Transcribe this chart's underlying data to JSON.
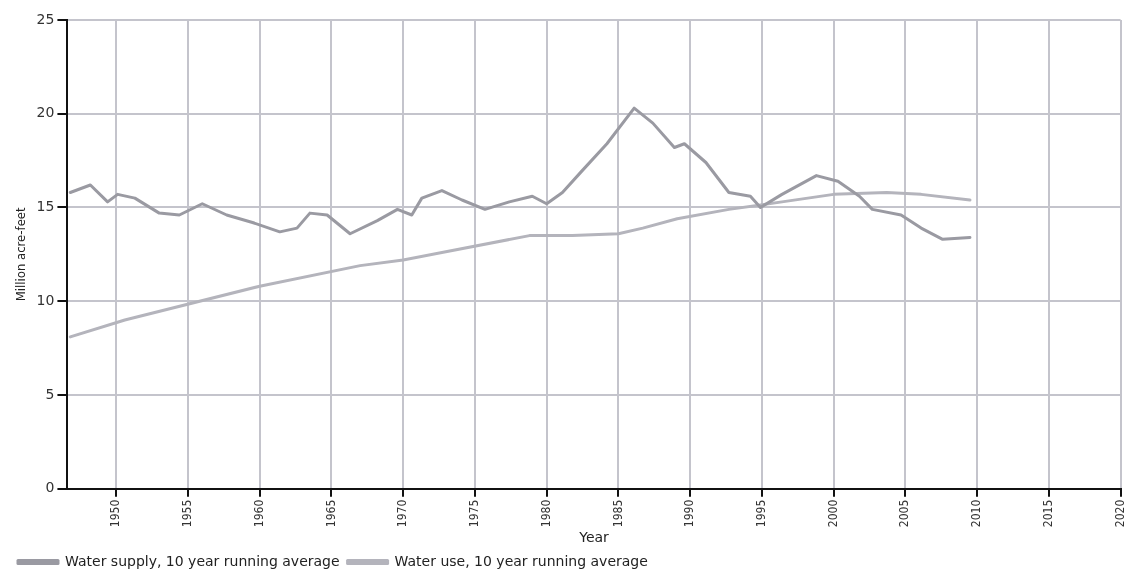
{
  "chart_data": {
    "type": "line",
    "xlabel": "Year",
    "ylabel": "Million acre-feet",
    "xlim": [
      1946.6,
      2020
    ],
    "xticks": [
      1950,
      1955,
      1960,
      1965,
      1970,
      1975,
      1980,
      1985,
      1990,
      1995,
      2000,
      2005,
      2010,
      2015,
      2020
    ],
    "ylim": [
      0,
      25
    ],
    "yticks": [
      0,
      5,
      10,
      15,
      20,
      25
    ],
    "grid": true,
    "legend": "bottom left",
    "marker": "none",
    "line_style": "solid",
    "series": [
      {
        "name": "Water supply, 10 year running average",
        "color": "#9a9aa2",
        "x": [
          1946.8,
          1948.2,
          1949.4,
          1950.1,
          1951.3,
          1953,
          1954.4,
          1956,
          1957.7,
          1959.5,
          1961.4,
          1962.6,
          1963.5,
          1964.7,
          1966.3,
          1968.2,
          1969.6,
          1970.6,
          1971.3,
          1972.7,
          1974.1,
          1975.7,
          1977.4,
          1979,
          1980,
          1981.1,
          1982.4,
          1984.2,
          1986.1,
          1987.4,
          1988.9,
          1989.6,
          1991.1,
          1992.7,
          1994.2,
          1994.9,
          1996.4,
          1998.8,
          2000.3,
          2001.8,
          2002.7,
          2004.7,
          2006.1,
          2007.6,
          2009.5
        ],
        "values": [
          15.8,
          16.2,
          15.3,
          15.7,
          15.5,
          14.7,
          14.6,
          15.2,
          14.6,
          14.2,
          13.7,
          13.9,
          14.7,
          14.6,
          13.6,
          14.3,
          14.9,
          14.6,
          15.5,
          15.9,
          15.4,
          14.9,
          15.3,
          15.6,
          15.2,
          15.8,
          16.9,
          18.4,
          20.3,
          19.5,
          18.2,
          18.4,
          17.4,
          15.8,
          15.6,
          15,
          15.7,
          16.7,
          16.4,
          15.6,
          14.9,
          14.6,
          13.9,
          13.3,
          13.4
        ]
      },
      {
        "name": "Water use, 10 year running average",
        "color": "#b4b4bc",
        "x": [
          1946.8,
          1950.6,
          1960,
          1967,
          1970,
          1978.8,
          1981.8,
          1985,
          1986.7,
          1989.1,
          1992.7,
          1996.4,
          2000,
          2003.7,
          2006.1,
          2009.5
        ],
        "values": [
          8.1,
          9,
          10.8,
          11.9,
          12.2,
          13.5,
          13.5,
          13.6,
          13.9,
          14.4,
          14.9,
          15.3,
          15.7,
          15.8,
          15.7,
          15.4
        ]
      }
    ]
  }
}
